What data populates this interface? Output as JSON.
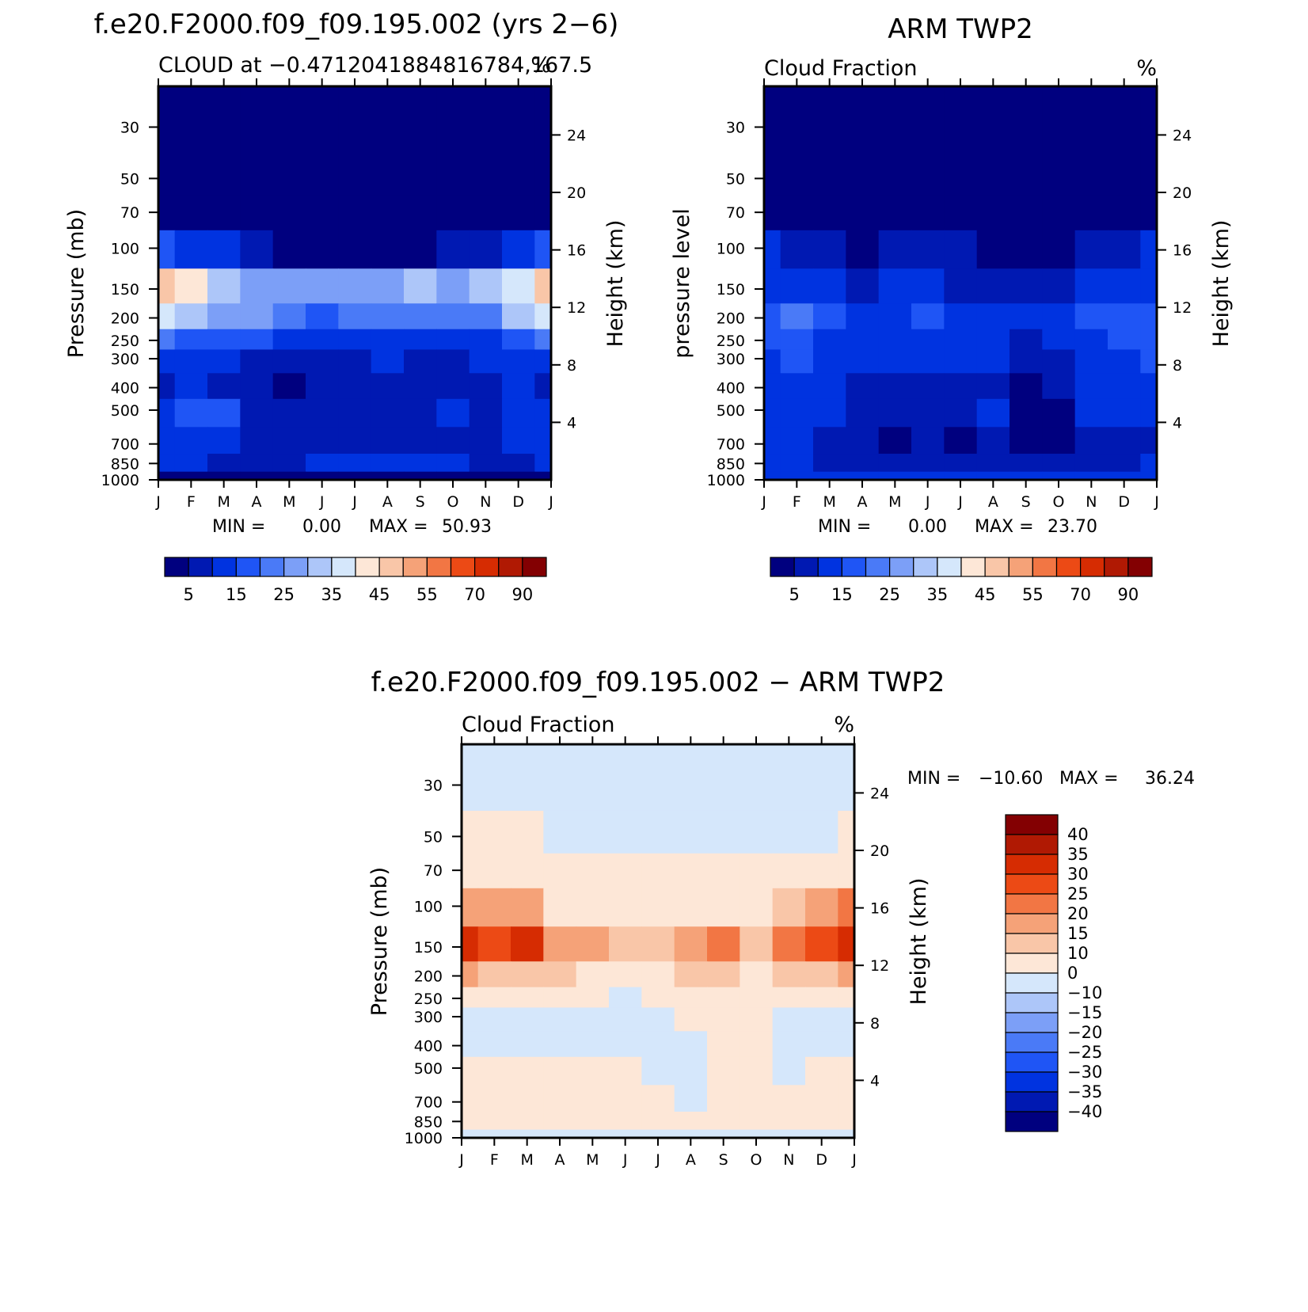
{
  "palette": {
    "model": [
      "#00007f",
      "#0019b2",
      "#0033e0",
      "#1f55f5",
      "#4a7af7",
      "#7c9ff7",
      "#adc6f9",
      "#d5e7fb",
      "#fde7d7",
      "#f9c6a8",
      "#f5a278",
      "#f27644",
      "#ec4a15",
      "#d62c02",
      "#b01903",
      "#830002"
    ],
    "diff": [
      "#00007f",
      "#0019b2",
      "#0033e0",
      "#1f55f5",
      "#4a7af7",
      "#7c9ff7",
      "#adc6f9",
      "#d5e7fb",
      "#fde7d7",
      "#f9c6a8",
      "#f5a278",
      "#f27644",
      "#ec4a15",
      "#d62c02",
      "#b01903",
      "#830002"
    ]
  },
  "months": [
    "J",
    "F",
    "M",
    "A",
    "M",
    "J",
    "J",
    "A",
    "S",
    "O",
    "N",
    "D",
    "J"
  ],
  "pressure_ticks": [
    "30",
    "50",
    "70",
    "100",
    "150",
    "200",
    "250",
    "300",
    "400",
    "500",
    "700",
    "850",
    "1000"
  ],
  "height_ticks": [
    "24",
    "20",
    "16",
    "12",
    "8",
    "4"
  ],
  "panels": {
    "model": {
      "title": "f.e20.F2000.f09_f09.195.002 (yrs 2−6)",
      "subtitle": "CLOUD at −0.471204188481​6784,167.5",
      "unit": "%",
      "ylabel": "Pressure (mb)",
      "ylabel_right": "Height (km)",
      "min_label": "MIN =",
      "min_value": "0.00",
      "max_label": "MAX =",
      "max_value": "50.93",
      "colorbar_labels": [
        "5",
        "15",
        "25",
        "35",
        "45",
        "55",
        "70",
        "90"
      ]
    },
    "obs": {
      "title": "ARM TWP2",
      "subtitle": "Cloud Fraction",
      "unit": "%",
      "ylabel": "pressure level",
      "ylabel_right": "Height (km)",
      "min_label": "MIN =",
      "min_value": "0.00",
      "max_label": "MAX =",
      "max_value": "23.70",
      "colorbar_labels": [
        "5",
        "15",
        "25",
        "35",
        "45",
        "55",
        "70",
        "90"
      ]
    },
    "diff": {
      "title": "f.e20.F2000.f09_f09.195.002 − ARM TWP2",
      "subtitle": "Cloud Fraction",
      "unit": "%",
      "ylabel": "Pressure (mb)",
      "ylabel_right": "Height (km)",
      "min_label": "MIN =",
      "min_value": "−10.60",
      "max_label": "MAX =",
      "max_value": "36.24",
      "colorbar_labels": [
        "40",
        "35",
        "30",
        "25",
        "20",
        "15",
        "10",
        "0",
        "−10",
        "−15",
        "−20",
        "−25",
        "−30",
        "−35",
        "−40"
      ]
    }
  },
  "chart_data": [
    {
      "type": "heatmap",
      "title": "f.e20.F2000.f09_f09.195.002 (yrs 2−6)",
      "subtitle": "CLOUD at −0.4712041884816784,167.5",
      "xlabel": "",
      "ylabel": "Pressure (mb)",
      "x": [
        "J",
        "F",
        "M",
        "A",
        "M",
        "J",
        "J",
        "A",
        "S",
        "O",
        "N",
        "D",
        "J"
      ],
      "y": [
        30,
        50,
        70,
        100,
        150,
        200,
        250,
        300,
        400,
        500,
        700,
        850,
        1000
      ],
      "y_scale": "log",
      "y_inverted": true,
      "unit": "%",
      "levels": [
        5,
        10,
        15,
        20,
        25,
        30,
        35,
        40,
        45,
        50,
        55,
        60,
        70,
        80,
        90
      ],
      "min": 0.0,
      "max": 50.93,
      "values": [
        [
          0,
          0,
          0,
          0,
          0,
          0,
          0,
          0,
          0,
          0,
          0,
          0,
          0
        ],
        [
          0,
          0,
          0,
          0,
          0,
          0,
          0,
          0,
          0,
          0,
          0,
          0,
          0
        ],
        [
          2,
          2,
          2,
          1,
          1,
          0,
          0,
          0,
          0,
          0,
          1,
          1,
          2
        ],
        [
          16,
          14,
          11,
          7,
          4,
          3,
          3,
          3,
          4,
          5,
          8,
          12,
          16
        ],
        [
          46,
          40,
          33,
          28,
          27,
          28,
          29,
          28,
          30,
          28,
          33,
          38,
          47
        ],
        [
          36,
          32,
          28,
          25,
          21,
          19,
          21,
          23,
          20,
          21,
          23,
          30,
          38
        ],
        [
          20,
          18,
          16,
          15,
          13,
          12,
          13,
          14,
          12,
          13,
          14,
          17,
          21
        ],
        [
          13,
          11,
          10,
          9,
          8,
          8,
          9,
          10,
          9,
          9,
          10,
          11,
          13
        ],
        [
          9,
          10,
          9,
          8,
          4,
          6,
          7,
          7,
          7,
          8,
          8,
          10,
          9
        ],
        [
          14,
          15,
          17,
          9,
          8,
          7,
          7,
          8,
          9,
          12,
          9,
          14,
          14
        ],
        [
          13,
          12,
          11,
          9,
          8,
          8,
          8,
          8,
          9,
          8,
          8,
          10,
          13
        ],
        [
          11,
          10,
          9,
          8,
          9,
          12,
          12,
          10,
          12,
          11,
          9,
          9,
          11
        ],
        [
          3,
          3,
          3,
          3,
          3,
          3,
          3,
          3,
          3,
          3,
          3,
          3,
          3
        ]
      ]
    },
    {
      "type": "heatmap",
      "title": "ARM TWP2",
      "subtitle": "Cloud Fraction",
      "xlabel": "",
      "ylabel": "pressure level",
      "x": [
        "J",
        "F",
        "M",
        "A",
        "M",
        "J",
        "J",
        "A",
        "S",
        "O",
        "N",
        "D",
        "J"
      ],
      "y": [
        30,
        50,
        70,
        100,
        150,
        200,
        250,
        300,
        400,
        500,
        700,
        850,
        1000
      ],
      "y_scale": "log",
      "y_inverted": true,
      "unit": "%",
      "levels": [
        5,
        10,
        15,
        20,
        25,
        30,
        35,
        40,
        45,
        50,
        55,
        60,
        70,
        80,
        90
      ],
      "min": 0.0,
      "max": 23.7,
      "values": [
        [
          0,
          0,
          0,
          0,
          0,
          0,
          0,
          0,
          0,
          0,
          0,
          0,
          0
        ],
        [
          0,
          0,
          0,
          0,
          0,
          0,
          0,
          0,
          0,
          0,
          0,
          0,
          0
        ],
        [
          1,
          1,
          1,
          0,
          0,
          0,
          0,
          0,
          0,
          0,
          0,
          1,
          1
        ],
        [
          10,
          8,
          5,
          4,
          5,
          5,
          5,
          4,
          3,
          4,
          6,
          8,
          10
        ],
        [
          13,
          13,
          11,
          9,
          10,
          10,
          9,
          9,
          7,
          9,
          12,
          13,
          14
        ],
        [
          16,
          20,
          15,
          12,
          12,
          17,
          12,
          11,
          10,
          12,
          15,
          16,
          19
        ],
        [
          16,
          19,
          14,
          12,
          11,
          13,
          11,
          12,
          9,
          10,
          13,
          15,
          18
        ],
        [
          14,
          18,
          13,
          11,
          10,
          11,
          10,
          10,
          7,
          9,
          12,
          13,
          15
        ],
        [
          13,
          14,
          12,
          8,
          8,
          8,
          7,
          6,
          4,
          5,
          11,
          12,
          13
        ],
        [
          14,
          13,
          11,
          7,
          7,
          7,
          7,
          11,
          3,
          4,
          10,
          11,
          12
        ],
        [
          12,
          10,
          7,
          6,
          3,
          6,
          4,
          6,
          3,
          3,
          7,
          7,
          9
        ],
        [
          11,
          11,
          8,
          7,
          7,
          7,
          7,
          7,
          6,
          6,
          7,
          8,
          10
        ],
        [
          13,
          13,
          13,
          13,
          13,
          13,
          13,
          13,
          13,
          13,
          13,
          13,
          13
        ]
      ]
    },
    {
      "type": "heatmap",
      "title": "f.e20.F2000.f09_f09.195.002 − ARM TWP2",
      "subtitle": "Cloud Fraction",
      "xlabel": "",
      "ylabel": "Pressure (mb)",
      "x": [
        "J",
        "F",
        "M",
        "A",
        "M",
        "J",
        "J",
        "A",
        "S",
        "O",
        "N",
        "D",
        "J"
      ],
      "y": [
        30,
        50,
        70,
        100,
        150,
        200,
        250,
        300,
        400,
        500,
        700,
        850,
        1000
      ],
      "y_scale": "log",
      "y_inverted": true,
      "unit": "%",
      "levels": [
        -40,
        -35,
        -30,
        -25,
        -20,
        -15,
        -10,
        0,
        10,
        15,
        20,
        25,
        30,
        35,
        40
      ],
      "min": -10.6,
      "max": 36.24,
      "values": [
        [
          -1,
          -1,
          -1,
          -1,
          -1,
          -1,
          -1,
          -1,
          -1,
          -1,
          -1,
          -1,
          -1
        ],
        [
          1,
          1,
          1,
          -1,
          -1,
          -1,
          -1,
          -1,
          -1,
          -1,
          -1,
          -1,
          1
        ],
        [
          3,
          3,
          2,
          1,
          1,
          0,
          0,
          0,
          0,
          0,
          1,
          2,
          3
        ],
        [
          19,
          18,
          16,
          8,
          6,
          5,
          5,
          5,
          6,
          6,
          10,
          15,
          20
        ],
        [
          33,
          28,
          31,
          19,
          18,
          11,
          14,
          16,
          24,
          14,
          21,
          26,
          34
        ],
        [
          17,
          13,
          11,
          12,
          9,
          4,
          9,
          12,
          10,
          9,
          11,
          14,
          18
        ],
        [
          4,
          3,
          2,
          3,
          2,
          -1,
          2,
          3,
          3,
          3,
          2,
          4,
          5
        ],
        [
          -1,
          -3,
          -2,
          -1,
          -1,
          -2,
          -1,
          2,
          2,
          1,
          -2,
          -1,
          -1
        ],
        [
          -3,
          -2,
          -2,
          -1,
          -3,
          -2,
          -1,
          -1,
          2,
          2,
          -2,
          -2,
          -3
        ],
        [
          1,
          2,
          5,
          2,
          1,
          0,
          -1,
          -1,
          4,
          6,
          -1,
          3,
          2
        ],
        [
          2,
          1,
          2,
          2,
          3,
          2,
          1,
          -1,
          4,
          3,
          3,
          3,
          3
        ],
        [
          0,
          0,
          1,
          1,
          2,
          5,
          5,
          3,
          5,
          4,
          2,
          1,
          1
        ],
        [
          -1,
          -1,
          -1,
          -1,
          -1,
          -1,
          -1,
          -1,
          -1,
          -1,
          -1,
          -1,
          -1
        ]
      ]
    }
  ]
}
